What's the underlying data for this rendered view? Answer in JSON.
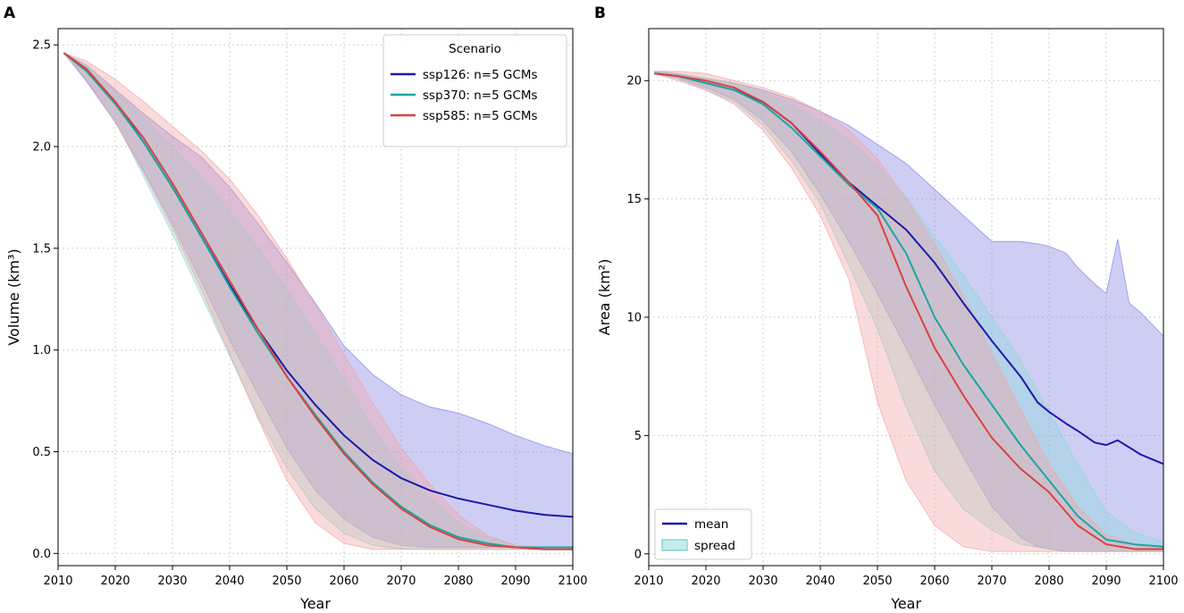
{
  "figure": {
    "panel_a_label": "A",
    "panel_b_label": "B"
  },
  "chart_data": [
    {
      "type": "line",
      "panel": "A",
      "xlabel": "Year",
      "ylabel": "Volume (km³)",
      "xlim": [
        2010,
        2100
      ],
      "ylim": [
        -0.06,
        2.58
      ],
      "xticks": [
        2010,
        2020,
        2030,
        2040,
        2050,
        2060,
        2070,
        2080,
        2090,
        2100
      ],
      "yticks": [
        0.0,
        0.5,
        1.0,
        1.5,
        2.0,
        2.5
      ],
      "grid": true,
      "legend": {
        "title": "Scenario",
        "position": "top-right",
        "entries": [
          "ssp126: n=5 GCMs",
          "ssp370: n=5 GCMs",
          "ssp585: n=5 GCMs"
        ]
      },
      "series": [
        {
          "name": "ssp126: n=5 GCMs",
          "color": "#1a1aaa",
          "fill": "#8585e6",
          "x": [
            2011,
            2015,
            2020,
            2025,
            2030,
            2035,
            2040,
            2045,
            2050,
            2055,
            2060,
            2065,
            2070,
            2075,
            2080,
            2085,
            2090,
            2095,
            2100
          ],
          "mean": [
            2.46,
            2.38,
            2.22,
            2.02,
            1.8,
            1.56,
            1.32,
            1.1,
            0.9,
            0.73,
            0.58,
            0.46,
            0.37,
            0.31,
            0.27,
            0.24,
            0.21,
            0.19,
            0.18
          ],
          "upper": [
            2.46,
            2.4,
            2.28,
            2.16,
            2.05,
            1.95,
            1.8,
            1.62,
            1.43,
            1.23,
            1.02,
            0.88,
            0.78,
            0.72,
            0.69,
            0.64,
            0.58,
            0.53,
            0.49
          ],
          "lower": [
            2.46,
            2.32,
            2.12,
            1.88,
            1.62,
            1.34,
            1.05,
            0.78,
            0.52,
            0.31,
            0.17,
            0.08,
            0.04,
            0.03,
            0.03,
            0.03,
            0.03,
            0.03,
            0.03
          ]
        },
        {
          "name": "ssp370: n=5 GCMs",
          "color": "#1aa6a0",
          "fill": "#8fdad6",
          "x": [
            2011,
            2015,
            2020,
            2025,
            2030,
            2035,
            2040,
            2045,
            2050,
            2055,
            2060,
            2065,
            2070,
            2075,
            2080,
            2085,
            2090,
            2095,
            2100
          ],
          "mean": [
            2.46,
            2.37,
            2.21,
            2.02,
            1.8,
            1.56,
            1.31,
            1.08,
            0.87,
            0.68,
            0.5,
            0.35,
            0.23,
            0.14,
            0.08,
            0.05,
            0.03,
            0.03,
            0.03
          ],
          "upper": [
            2.46,
            2.4,
            2.27,
            2.14,
            2.0,
            1.85,
            1.68,
            1.5,
            1.3,
            1.08,
            0.85,
            0.62,
            0.42,
            0.27,
            0.15,
            0.08,
            0.04,
            0.03,
            0.03
          ],
          "lower": [
            2.46,
            2.33,
            2.13,
            1.85,
            1.57,
            1.27,
            0.97,
            0.67,
            0.42,
            0.22,
            0.1,
            0.04,
            0.02,
            0.02,
            0.02,
            0.02,
            0.02,
            0.02,
            0.02
          ]
        },
        {
          "name": "ssp585: n=5 GCMs",
          "color": "#d9423f",
          "fill": "#f2a5a4",
          "x": [
            2011,
            2015,
            2020,
            2025,
            2030,
            2035,
            2040,
            2045,
            2050,
            2055,
            2060,
            2065,
            2070,
            2075,
            2080,
            2085,
            2090,
            2095,
            2100
          ],
          "mean": [
            2.46,
            2.38,
            2.22,
            2.04,
            1.82,
            1.58,
            1.34,
            1.1,
            0.87,
            0.67,
            0.49,
            0.34,
            0.22,
            0.13,
            0.07,
            0.04,
            0.03,
            0.02,
            0.02
          ],
          "upper": [
            2.46,
            2.42,
            2.33,
            2.22,
            2.1,
            1.98,
            1.84,
            1.66,
            1.45,
            1.22,
            0.98,
            0.74,
            0.52,
            0.34,
            0.19,
            0.09,
            0.04,
            0.03,
            0.03
          ],
          "lower": [
            2.46,
            2.33,
            2.12,
            1.87,
            1.6,
            1.3,
            0.98,
            0.66,
            0.36,
            0.15,
            0.05,
            0.02,
            0.02,
            0.02,
            0.02,
            0.02,
            0.02,
            0.02,
            0.02
          ]
        }
      ]
    },
    {
      "type": "line",
      "panel": "B",
      "xlabel": "Year",
      "ylabel": "Area (km²)",
      "xlim": [
        2010,
        2100
      ],
      "ylim": [
        -0.5,
        22.2
      ],
      "xticks": [
        2010,
        2020,
        2030,
        2040,
        2050,
        2060,
        2070,
        2080,
        2090,
        2100
      ],
      "yticks": [
        0,
        5,
        10,
        15,
        20
      ],
      "grid": true,
      "legend": {
        "position": "bottom-left",
        "entries": [
          "mean",
          "spread"
        ]
      },
      "series": [
        {
          "name": "ssp126",
          "color": "#1a1aaa",
          "fill": "#8585e6",
          "x": [
            2011,
            2015,
            2020,
            2025,
            2030,
            2035,
            2040,
            2045,
            2050,
            2055,
            2060,
            2065,
            2070,
            2075,
            2078,
            2080,
            2083,
            2085,
            2088,
            2090,
            2092,
            2094,
            2096,
            2098,
            2100
          ],
          "mean": [
            20.3,
            20.2,
            19.9,
            19.6,
            19.1,
            18.2,
            16.9,
            15.7,
            14.7,
            13.7,
            12.3,
            10.6,
            9.0,
            7.5,
            6.4,
            6.0,
            5.5,
            5.2,
            4.7,
            4.6,
            4.8,
            4.5,
            4.2,
            4.0,
            3.8
          ],
          "upper": [
            20.4,
            20.3,
            20.1,
            19.9,
            19.6,
            19.2,
            18.7,
            18.1,
            17.3,
            16.5,
            15.4,
            14.3,
            13.2,
            13.2,
            13.1,
            13.0,
            12.7,
            12.1,
            11.4,
            11.0,
            13.3,
            10.6,
            10.2,
            9.7,
            9.2
          ],
          "lower": [
            20.3,
            20.1,
            19.7,
            19.2,
            18.3,
            17.0,
            15.2,
            13.2,
            11.0,
            8.7,
            6.3,
            4.1,
            2.0,
            0.7,
            0.3,
            0.2,
            0.1,
            0.1,
            0.1,
            0.1,
            0.1,
            0.1,
            0.1,
            0.1,
            0.1
          ]
        },
        {
          "name": "ssp370",
          "color": "#1aa6a0",
          "fill": "#8fdad6",
          "x": [
            2011,
            2015,
            2020,
            2025,
            2030,
            2035,
            2040,
            2045,
            2050,
            2055,
            2060,
            2065,
            2070,
            2075,
            2080,
            2085,
            2090,
            2095,
            2100
          ],
          "mean": [
            20.3,
            20.2,
            19.9,
            19.6,
            19.0,
            18.0,
            16.8,
            15.6,
            14.6,
            12.7,
            10.0,
            8.0,
            6.3,
            4.6,
            3.1,
            1.6,
            0.6,
            0.4,
            0.3
          ],
          "upper": [
            20.4,
            20.3,
            20.1,
            19.9,
            19.5,
            19.0,
            18.3,
            17.5,
            16.4,
            15.1,
            13.4,
            11.8,
            10.0,
            8.2,
            6.0,
            3.8,
            1.8,
            0.9,
            0.5
          ],
          "lower": [
            20.3,
            20.1,
            19.6,
            19.1,
            18.1,
            16.6,
            14.8,
            12.2,
            9.5,
            6.2,
            3.5,
            1.9,
            1.0,
            0.4,
            0.2,
            0.1,
            0.1,
            0.1,
            0.1
          ]
        },
        {
          "name": "ssp585",
          "color": "#d9423f",
          "fill": "#f2a5a4",
          "x": [
            2011,
            2015,
            2020,
            2025,
            2030,
            2035,
            2040,
            2045,
            2050,
            2055,
            2060,
            2065,
            2070,
            2075,
            2080,
            2085,
            2090,
            2095,
            2100
          ],
          "mean": [
            20.3,
            20.2,
            20.0,
            19.7,
            19.1,
            18.2,
            17.0,
            15.7,
            14.3,
            11.3,
            8.7,
            6.7,
            4.9,
            3.6,
            2.6,
            1.2,
            0.4,
            0.2,
            0.2
          ],
          "upper": [
            20.4,
            20.4,
            20.3,
            20.0,
            19.7,
            19.3,
            18.7,
            17.9,
            16.7,
            15.0,
            13.1,
            10.9,
            8.5,
            6.1,
            3.8,
            2.0,
            0.8,
            0.4,
            0.3
          ],
          "lower": [
            20.3,
            20.0,
            19.6,
            19.0,
            17.9,
            16.3,
            14.3,
            11.6,
            6.4,
            3.1,
            1.2,
            0.3,
            0.1,
            0.1,
            0.1,
            0.1,
            0.1,
            0.1,
            0.1
          ]
        }
      ]
    }
  ]
}
